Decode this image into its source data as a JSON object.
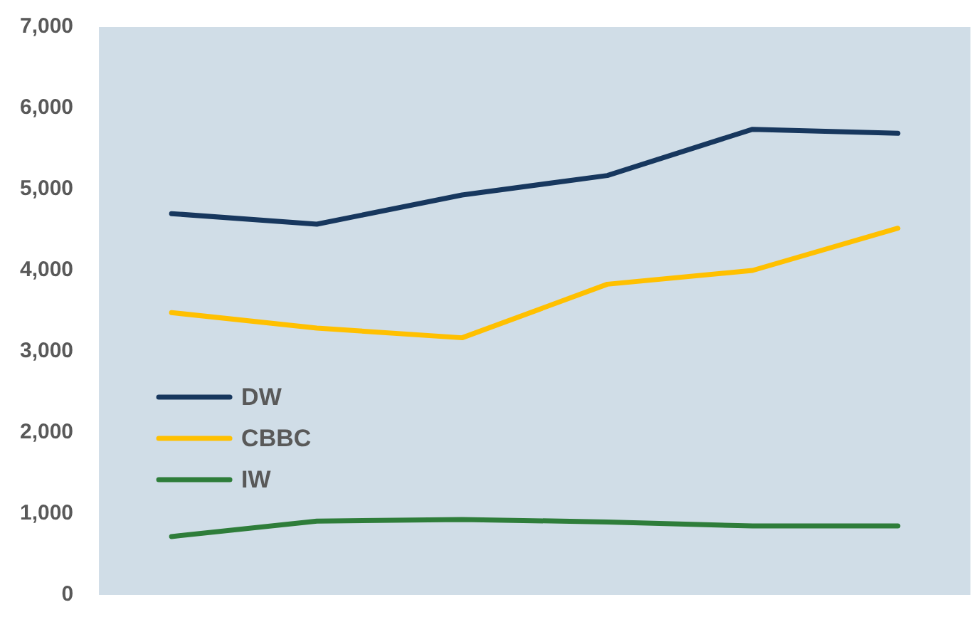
{
  "chart_data": {
    "type": "line",
    "categories": [
      null,
      null,
      null,
      null,
      null,
      null
    ],
    "series": [
      {
        "name": "DW",
        "color": "#17375e",
        "values": [
          4700,
          4570,
          4930,
          5170,
          5740,
          5690
        ]
      },
      {
        "name": "CBBC",
        "color": "#ffc000",
        "values": [
          3480,
          3290,
          3170,
          3830,
          4000,
          4520
        ]
      },
      {
        "name": "IW",
        "color": "#2e7d3a",
        "values": [
          720,
          910,
          930,
          900,
          850,
          850
        ]
      }
    ],
    "ylim": [
      0,
      7000
    ],
    "yticks": [
      {
        "value": 0,
        "label": "0"
      },
      {
        "value": 1000,
        "label": "1,000"
      },
      {
        "value": 2000,
        "label": "2,000"
      },
      {
        "value": 3000,
        "label": "3,000"
      },
      {
        "value": 4000,
        "label": "4,000"
      },
      {
        "value": 5000,
        "label": "5,000"
      },
      {
        "value": 6000,
        "label": "6,000"
      },
      {
        "value": 7000,
        "label": "7,000"
      }
    ],
    "grid": false,
    "legend": "left",
    "tick_labels": "y",
    "marker": "none",
    "line_style": "solid"
  }
}
